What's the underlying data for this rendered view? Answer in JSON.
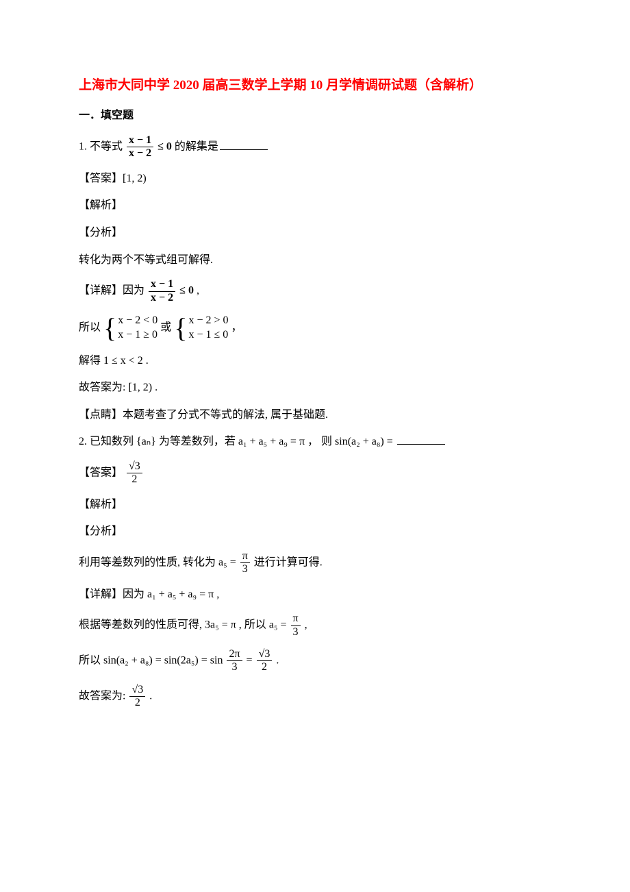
{
  "colors": {
    "title": "#ff0000",
    "text": "#000000",
    "background": "#ffffff"
  },
  "typography": {
    "title_fontsize_pt": 14,
    "body_fontsize_pt": 12,
    "font_family_cn": "SimSun",
    "font_family_math": "Times New Roman"
  },
  "title": "上海市大同中学 2020 届高三数学上学期 10 月学情调研试题（含解析）",
  "section_header": "一．填空题",
  "q1": {
    "number_label": "1.",
    "prompt_prefix": "不等式",
    "frac_num": "x − 1",
    "frac_den": "x − 2",
    "leq0_bold": "≤ 0",
    "prompt_suffix": "的解集是",
    "answer_label": "【答案】",
    "answer_value": "[1, 2)",
    "jiexi_label": "【解析】",
    "fenxi_label": "【分析】",
    "fenxi_text": "转化为两个不等式组可解得.",
    "xiangjie_label": "【详解】",
    "xiangjie_prefix": "因为",
    "xiangjie_frac_num": "x − 1",
    "xiangjie_frac_den": "x − 2",
    "xiangjie_leq0": "≤ 0",
    "suoyi_prefix": "所以",
    "group1_line1": "x − 2 < 0",
    "group1_line2": "x − 1 ≥ 0",
    "or_text": "或",
    "group2_line1": "x − 2 > 0",
    "group2_line2": "x − 1 ≤ 0",
    "comma": "，",
    "jiede_text": "解得 1 ≤ x < 2 .",
    "gudaan_text": "故答案为: [1, 2) .",
    "dianjing_label": "【点睛】",
    "dianjing_text": "本题考查了分式不等式的解法, 属于基础题."
  },
  "q2": {
    "number_label": "2.",
    "prompt": "已知数列 {aₙ} 为等差数列，若 a₁ + a₅ + a₉ = π ， 则 sin(a₂ + a₈) = ",
    "answer_label": "【答案】",
    "answer_frac_num": "√3",
    "answer_frac_den": "2",
    "jiexi_label": "【解析】",
    "fenxi_label": "【分析】",
    "fenxi_prefix": "利用等差数列的性质, 转化为",
    "fenxi_eq_lhs": "a₅ =",
    "fenxi_frac_num": "π",
    "fenxi_frac_den": "3",
    "fenxi_suffix": "进行计算可得.",
    "xiangjie_label": "【详解】",
    "xiangjie_text": "因为 a₁ + a₅ + a₉ = π ,",
    "line2_prefix": "根据等差数列的性质可得,",
    "line2_eq1": "3a₅ = π",
    "line2_mid": ", 所以",
    "line2_eq2_lhs": "a₅ =",
    "line2_frac_num": "π",
    "line2_frac_den": "3",
    "line3_prefix": "所以",
    "line3_eq_lhs": "sin(a₂ + a₈) = sin(2a₅) = sin",
    "line3_frac1_num": "2π",
    "line3_frac1_den": "3",
    "line3_eq_mid": "=",
    "line3_frac2_num": "√3",
    "line3_frac2_den": "2",
    "period": ".",
    "gudaan_prefix": "故答案为:",
    "gudaan_frac_num": "√3",
    "gudaan_frac_den": "2"
  }
}
